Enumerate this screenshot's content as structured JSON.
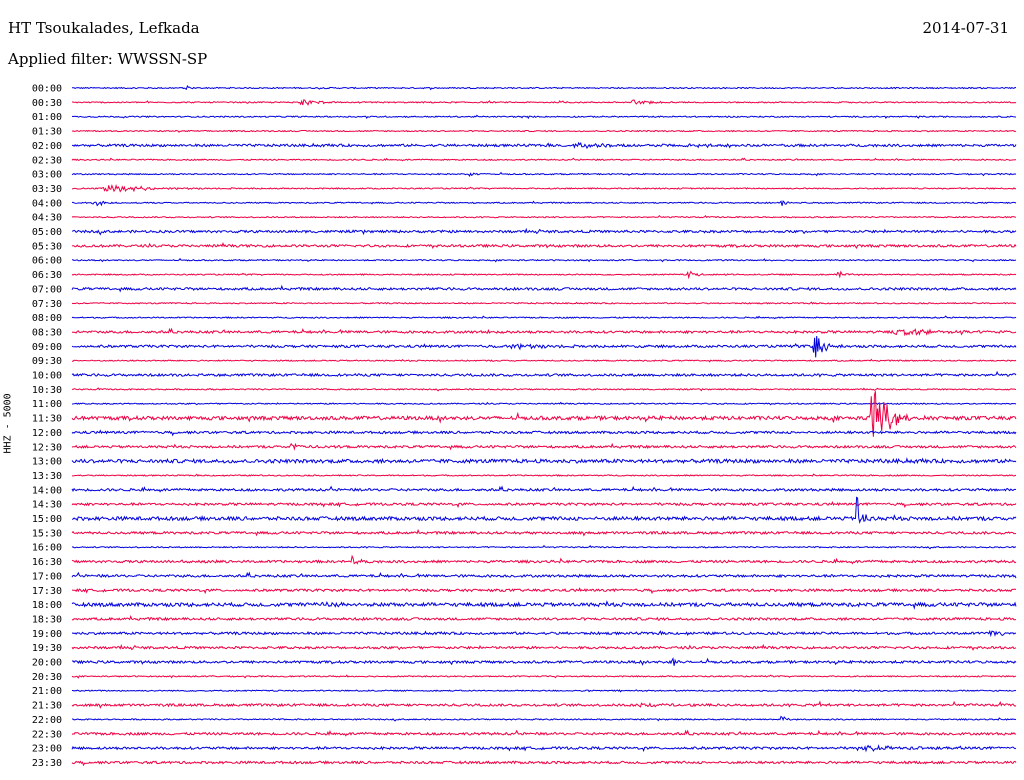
{
  "header": {
    "station": "HT Tsoukalades, Lefkada",
    "date": "2014-07-31",
    "filter": "Applied filter: WWSSN-SP"
  },
  "chart_data": {
    "type": "line",
    "title": "HT Tsoukalades, Lefkada",
    "ylabel": "HHZ - 5000",
    "row_labels": [
      "00:00",
      "00:30",
      "01:00",
      "01:30",
      "02:00",
      "02:30",
      "03:00",
      "03:30",
      "04:00",
      "04:30",
      "05:00",
      "05:30",
      "06:00",
      "06:30",
      "07:00",
      "07:30",
      "08:00",
      "08:30",
      "09:00",
      "09:30",
      "10:00",
      "10:30",
      "11:00",
      "11:30",
      "12:00",
      "12:30",
      "13:00",
      "13:30",
      "14:00",
      "14:30",
      "15:00",
      "15:30",
      "16:00",
      "16:30",
      "17:00",
      "17:30",
      "18:00",
      "18:30",
      "19:00",
      "19:30",
      "20:00",
      "20:30",
      "21:00",
      "21:30",
      "22:00",
      "22:30",
      "23:00",
      "23:30"
    ],
    "colors": [
      "#0000dd",
      "#ee0044"
    ],
    "noise_levels": [
      1,
      1,
      1,
      1,
      2,
      1,
      1,
      1,
      1,
      1,
      2,
      2,
      1,
      1,
      2,
      1,
      1,
      2,
      2,
      1,
      2,
      1,
      1,
      3,
      2,
      2,
      3,
      1,
      2,
      2,
      3,
      2,
      1,
      2,
      2,
      2,
      3,
      2,
      2,
      2,
      2,
      1,
      1,
      2,
      1,
      2,
      2,
      2
    ],
    "events": [
      {
        "row": 0,
        "t": 0.12,
        "amp": 3,
        "dur": 0.005
      },
      {
        "row": 1,
        "t": 0.24,
        "amp": 4,
        "dur": 0.03
      },
      {
        "row": 1,
        "t": 0.59,
        "amp": 4,
        "dur": 0.025
      },
      {
        "row": 4,
        "t": 0.53,
        "amp": 4,
        "dur": 0.03
      },
      {
        "row": 4,
        "t": 0.64,
        "amp": 3,
        "dur": 0.04
      },
      {
        "row": 6,
        "t": 0.42,
        "amp": 3,
        "dur": 0.01
      },
      {
        "row": 7,
        "t": 0.03,
        "amp": 5,
        "dur": 0.06
      },
      {
        "row": 8,
        "t": 0.02,
        "amp": 4,
        "dur": 0.02
      },
      {
        "row": 8,
        "t": 0.75,
        "amp": 4,
        "dur": 0.01
      },
      {
        "row": 13,
        "t": 0.65,
        "amp": 4,
        "dur": 0.02
      },
      {
        "row": 13,
        "t": 0.81,
        "amp": 4,
        "dur": 0.015
      },
      {
        "row": 17,
        "t": 0.44,
        "amp": 3,
        "dur": 0.01
      },
      {
        "row": 17,
        "t": 0.87,
        "amp": 5,
        "dur": 0.04
      },
      {
        "row": 18,
        "t": 0.46,
        "amp": 3,
        "dur": 0.05
      },
      {
        "row": 18,
        "t": 0.785,
        "amp": 28,
        "dur": 0.012
      },
      {
        "row": 20,
        "t": 0.12,
        "amp": 3,
        "dur": 0.01
      },
      {
        "row": 23,
        "t": 0.845,
        "amp": 60,
        "dur": 0.02
      },
      {
        "row": 25,
        "t": 0.23,
        "amp": 6,
        "dur": 0.02
      },
      {
        "row": 30,
        "t": 0.83,
        "amp": 35,
        "dur": 0.008
      },
      {
        "row": 31,
        "t": 0.47,
        "amp": 4,
        "dur": 0.01
      },
      {
        "row": 33,
        "t": 0.11,
        "amp": 3,
        "dur": 0.02
      },
      {
        "row": 33,
        "t": 0.295,
        "amp": 10,
        "dur": 0.008
      },
      {
        "row": 36,
        "t": 0.26,
        "amp": 3,
        "dur": 0.03
      },
      {
        "row": 38,
        "t": 0.97,
        "amp": 5,
        "dur": 0.02
      },
      {
        "row": 40,
        "t": 0.635,
        "amp": 6,
        "dur": 0.008
      },
      {
        "row": 43,
        "t": 0.6,
        "amp": 5,
        "dur": 0.025
      },
      {
        "row": 43,
        "t": 0.79,
        "amp": 5,
        "dur": 0.008
      },
      {
        "row": 44,
        "t": 0.75,
        "amp": 6,
        "dur": 0.01
      },
      {
        "row": 46,
        "t": 0.83,
        "amp": 4,
        "dur": 0.04
      }
    ]
  }
}
